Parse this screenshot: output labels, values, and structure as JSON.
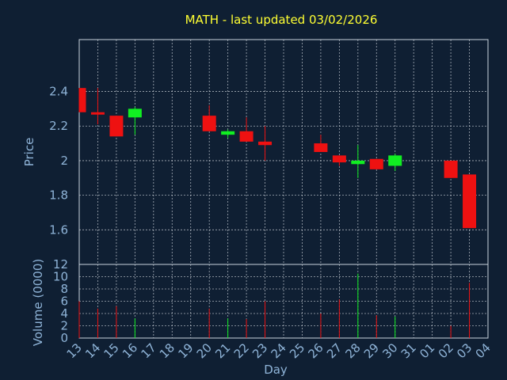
{
  "title": "MATH - last updated 03/02/2026",
  "colors": {
    "background": "#0f1f33",
    "up": "#11ee22",
    "down": "#ee1111",
    "text": "#8fb4d8",
    "title": "#ffff33"
  },
  "chart_data": {
    "type": "candlestick",
    "xlabel": "Day",
    "grid": true,
    "days": [
      "13",
      "14",
      "15",
      "16",
      "17",
      "18",
      "19",
      "20",
      "21",
      "22",
      "23",
      "24",
      "25",
      "26",
      "27",
      "28",
      "29",
      "30",
      "31",
      "01",
      "02",
      "03",
      "04"
    ],
    "price_panel": {
      "ylabel": "Price",
      "ylim": [
        1.4,
        2.7
      ],
      "yticks": [
        "1.6",
        "1.8",
        "2",
        "2.2",
        "2.4"
      ],
      "ytick_values": [
        1.6,
        1.8,
        2.0,
        2.2,
        2.4
      ]
    },
    "volume_panel": {
      "ylabel": "Volume (0000)",
      "ylim": [
        0,
        12
      ],
      "yticks": [
        "0",
        "2",
        "4",
        "6",
        "8",
        "10",
        "12"
      ],
      "ytick_values": [
        0,
        2,
        4,
        6,
        8,
        10,
        12
      ]
    },
    "candles": [
      {
        "day": "13",
        "open": 2.42,
        "high": 2.42,
        "low": 2.28,
        "close": 2.28,
        "volume": 6.0
      },
      {
        "day": "14",
        "open": 2.28,
        "high": 2.42,
        "low": 2.21,
        "close": 2.27,
        "volume": 4.8
      },
      {
        "day": "15",
        "open": 2.26,
        "high": 2.26,
        "low": 2.14,
        "close": 2.14,
        "volume": 5.2
      },
      {
        "day": "16",
        "open": 2.25,
        "high": 2.31,
        "low": 2.15,
        "close": 2.3,
        "volume": 3.2
      },
      {
        "day": "20",
        "open": 2.26,
        "high": 2.32,
        "low": 2.17,
        "close": 2.17,
        "volume": 4.8
      },
      {
        "day": "21",
        "open": 2.15,
        "high": 2.18,
        "low": 2.13,
        "close": 2.17,
        "volume": 3.2
      },
      {
        "day": "22",
        "open": 2.17,
        "high": 2.25,
        "low": 2.11,
        "close": 2.11,
        "volume": 3.1
      },
      {
        "day": "23",
        "open": 2.11,
        "high": 2.2,
        "low": 2.0,
        "close": 2.09,
        "volume": 6.0
      },
      {
        "day": "26",
        "open": 2.1,
        "high": 2.15,
        "low": 2.05,
        "close": 2.05,
        "volume": 4.0
      },
      {
        "day": "27",
        "open": 2.03,
        "high": 2.03,
        "low": 1.97,
        "close": 1.99,
        "volume": 6.3
      },
      {
        "day": "28",
        "open": 1.98,
        "high": 2.09,
        "low": 1.9,
        "close": 2.0,
        "volume": 10.5
      },
      {
        "day": "29",
        "open": 2.01,
        "high": 2.01,
        "low": 1.95,
        "close": 1.95,
        "volume": 3.7
      },
      {
        "day": "30",
        "open": 1.97,
        "high": 2.04,
        "low": 1.94,
        "close": 2.03,
        "volume": 3.5
      },
      {
        "day": "02",
        "open": 2.0,
        "high": 2.0,
        "low": 1.9,
        "close": 1.9,
        "volume": 2.0
      },
      {
        "day": "03",
        "open": 1.92,
        "high": 1.92,
        "low": 1.61,
        "close": 1.61,
        "volume": 9.0
      }
    ]
  }
}
